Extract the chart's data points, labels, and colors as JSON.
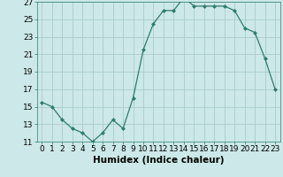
{
  "x": [
    0,
    1,
    2,
    3,
    4,
    5,
    6,
    7,
    8,
    9,
    10,
    11,
    12,
    13,
    14,
    15,
    16,
    17,
    18,
    19,
    20,
    21,
    22,
    23
  ],
  "y": [
    15.5,
    15.0,
    13.5,
    12.5,
    12.0,
    11.0,
    12.0,
    13.5,
    12.5,
    16.0,
    21.5,
    24.5,
    26.0,
    26.0,
    27.5,
    26.5,
    26.5,
    26.5,
    26.5,
    26.0,
    24.0,
    23.5,
    20.5,
    17.0
  ],
  "line_color": "#2d7d6e",
  "marker": "D",
  "marker_size": 2,
  "bg_color": "#cce8e8",
  "grid_color": "#aacccc",
  "xlabel": "Humidex (Indice chaleur)",
  "xlabel_fontsize": 7.5,
  "tick_fontsize": 6.5,
  "ylim": [
    11,
    27
  ],
  "xlim": [
    -0.5,
    23.5
  ],
  "yticks": [
    11,
    13,
    15,
    17,
    19,
    21,
    23,
    25,
    27
  ],
  "xticks": [
    0,
    1,
    2,
    3,
    4,
    5,
    6,
    7,
    8,
    9,
    10,
    11,
    12,
    13,
    14,
    15,
    16,
    17,
    18,
    19,
    20,
    21,
    22,
    23
  ],
  "xtick_labels": [
    "0",
    "1",
    "2",
    "3",
    "4",
    "5",
    "6",
    "7",
    "8",
    "9",
    "10",
    "11",
    "12",
    "13",
    "14",
    "15",
    "16",
    "17",
    "18",
    "19",
    "20",
    "21",
    "22",
    "23"
  ]
}
